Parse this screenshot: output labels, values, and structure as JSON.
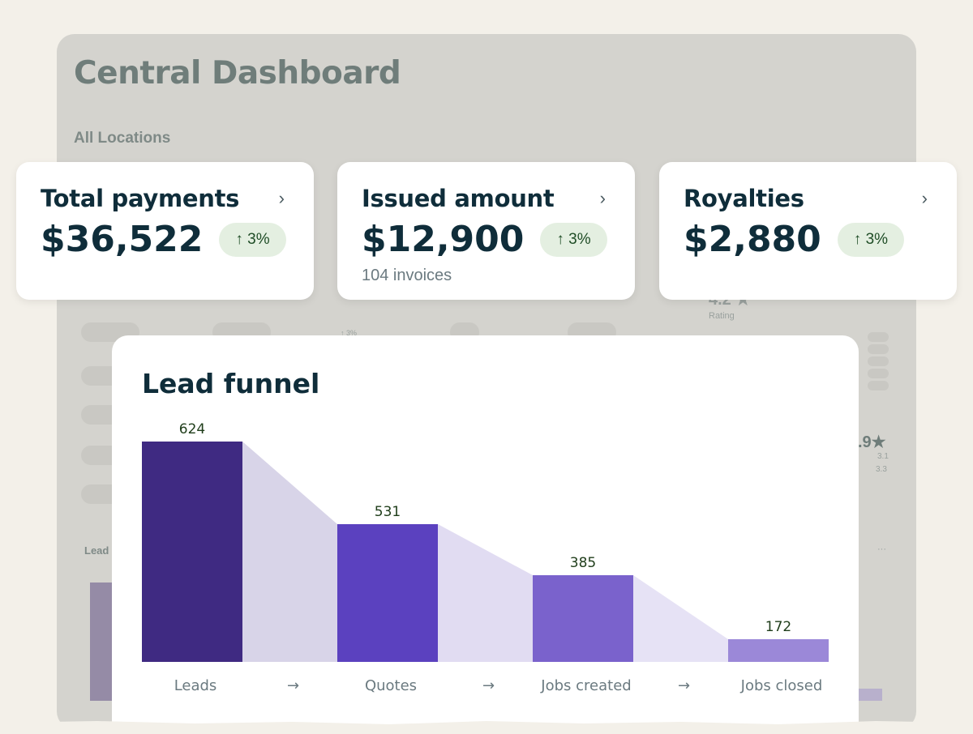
{
  "background": {
    "title": "Central Dashboard",
    "subtitle": "All Locations",
    "rating_a": "4.2 ★",
    "rating_label": "Rating",
    "rating_b": ".9★",
    "rating_b_sub1": "3.1",
    "rating_b_sub2": "3.3",
    "change": "↑ 3%",
    "lead_label": "Lead",
    "more": "···"
  },
  "cards": [
    {
      "title": "Total payments",
      "value": "$36,522",
      "change": "↑ 3%",
      "note": ""
    },
    {
      "title": "Issued amount",
      "value": "$12,900",
      "change": "↑ 3%",
      "note": "104 invoices"
    },
    {
      "title": "Royalties",
      "value": "$2,880",
      "change": "↑ 3%",
      "note": ""
    }
  ],
  "chevron_icon": "chevron-right-icon",
  "funnel": {
    "title": "Lead funnel",
    "arrow": "→"
  },
  "colors": {
    "bars": [
      "#3f2a82",
      "#5b41bf",
      "#7a62cc",
      "#9b88d8"
    ],
    "connectors": [
      "#d8d4e8",
      "#e1dcf2",
      "#e6e2f5"
    ]
  },
  "chart_data": {
    "type": "bar",
    "title": "Lead funnel",
    "categories": [
      "Leads",
      "Quotes",
      "Jobs created",
      "Jobs closed"
    ],
    "values": [
      624,
      531,
      385,
      172
    ],
    "value_labels": [
      "624",
      "531",
      "385",
      "172"
    ]
  }
}
